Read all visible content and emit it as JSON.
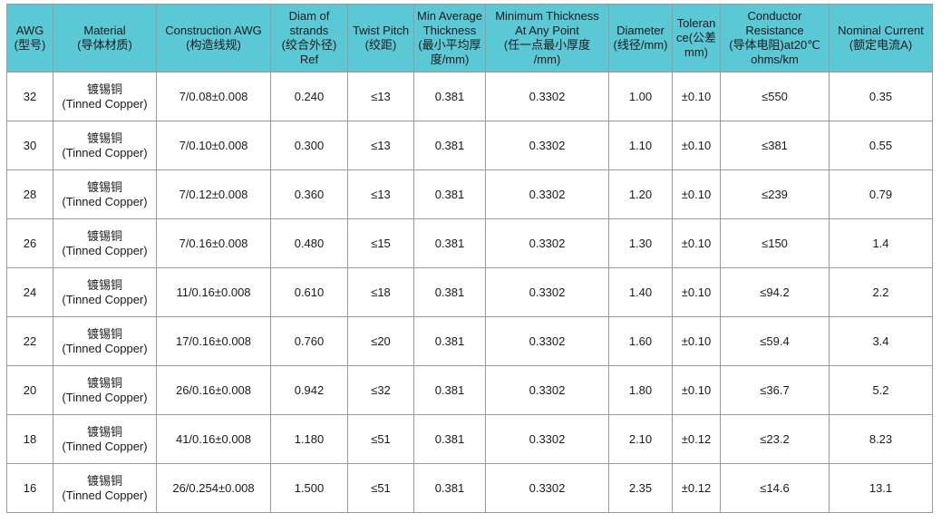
{
  "colors": {
    "header_background": "#5bc8d6",
    "border": "#9a9a9a"
  },
  "headers": [
    "AWG\n(型号)",
    "Material\n(导体材质)",
    "Construction AWG\n(构造线规)",
    "Diam of\nstrands\n(绞合外径)\nRef",
    "Twist Pitch\n(绞距)",
    "Min Average\nThickness\n(最小平均厚\n度/mm)",
    "Minimum Thickness\nAt Any Point\n(任一点最小厚度\n/mm)",
    "Diameter\n(线径/mm)",
    "Toleran\nce(公差\nmm)",
    "Conductor\nResistance\n(导体电阻)at20℃\nohms/km",
    "Nominal Current\n(额定电流A)"
  ],
  "rows": [
    [
      "32",
      "镀锡铜\n(Tinned Copper)",
      "7/0.08±0.008",
      "0.240",
      "≤13",
      "0.381",
      "0.3302",
      "1.00",
      "±0.10",
      "≤550",
      "0.35"
    ],
    [
      "30",
      "镀锡铜\n(Tinned Copper)",
      "7/0.10±0.008",
      "0.300",
      "≤13",
      "0.381",
      "0.3302",
      "1.10",
      "±0.10",
      "≤381",
      "0.55"
    ],
    [
      "28",
      "镀锡铜\n(Tinned Copper)",
      "7/0.12±0.008",
      "0.360",
      "≤13",
      "0.381",
      "0.3302",
      "1.20",
      "±0.10",
      "≤239",
      "0.79"
    ],
    [
      "26",
      "镀锡铜\n(Tinned Copper)",
      "7/0.16±0.008",
      "0.480",
      "≤15",
      "0.381",
      "0.3302",
      "1.30",
      "±0.10",
      "≤150",
      "1.4"
    ],
    [
      "24",
      "镀锡铜\n(Tinned Copper)",
      "11/0.16±0.008",
      "0.610",
      "≤18",
      "0.381",
      "0.3302",
      "1.40",
      "±0.10",
      "≤94.2",
      "2.2"
    ],
    [
      "22",
      "镀锡铜\n(Tinned Copper)",
      "17/0.16±0.008",
      "0.760",
      "≤20",
      "0.381",
      "0.3302",
      "1.60",
      "±0.10",
      "≤59.4",
      "3.4"
    ],
    [
      "20",
      "镀锡铜\n(Tinned Copper)",
      "26/0.16±0.008",
      "0.942",
      "≤32",
      "0.381",
      "0.3302",
      "1.80",
      "±0.10",
      "≤36.7",
      "5.2"
    ],
    [
      "18",
      "镀锡铜\n(Tinned Copper)",
      "41/0.16±0.008",
      "1.180",
      "≤51",
      "0.381",
      "0.3302",
      "2.10",
      "±0.12",
      "≤23.2",
      "8.23"
    ],
    [
      "16",
      "镀锡铜\n(Tinned Copper)",
      "26/0.254±0.008",
      "1.500",
      "≤51",
      "0.381",
      "0.3302",
      "2.35",
      "±0.12",
      "≤14.6",
      "13.1"
    ]
  ]
}
